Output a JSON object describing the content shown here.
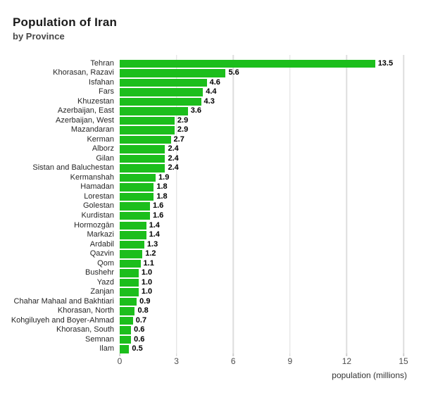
{
  "chart": {
    "title": "Population of Iran",
    "subtitle": "by Province",
    "xaxis_title": "population (millions)"
  },
  "chart_data": {
    "type": "bar",
    "orientation": "horizontal",
    "title": "Population of Iran",
    "subtitle": "by Province",
    "xlabel": "population (millions)",
    "ylabel": "",
    "xlim": [
      0,
      15
    ],
    "xticks": [
      0,
      3,
      6,
      9,
      12,
      15
    ],
    "grid": true,
    "bar_color": "#1cbe1c",
    "grid_color": "#dedede",
    "value_label_decimals": 1,
    "categories": [
      "Tehran",
      "Khorasan, Razavi",
      "Isfahan",
      "Fars",
      "Khuzestan",
      "Azerbaijan, East",
      "Azerbaijan, West",
      "Mazandaran",
      "Kerman",
      "Alborz",
      "Gilan",
      "Sistan and Baluchestan",
      "Kermanshah",
      "Hamadan",
      "Lorestan",
      "Golestan",
      "Kurdistan",
      "Hormozgān",
      "Markazi",
      "Ardabil",
      "Qazvin",
      "Qom",
      "Bushehr",
      "Yazd",
      "Zanjan",
      "Chahar Mahaal and Bakhtiari",
      "Khorasan, North",
      "Kohgiluyeh and Boyer-Ahmad",
      "Khorasan, South",
      "Semnan",
      "Ilam"
    ],
    "values": [
      13.5,
      5.6,
      4.6,
      4.4,
      4.3,
      3.6,
      2.9,
      2.9,
      2.7,
      2.4,
      2.4,
      2.4,
      1.9,
      1.8,
      1.8,
      1.6,
      1.6,
      1.4,
      1.4,
      1.3,
      1.2,
      1.1,
      1.0,
      1.0,
      1.0,
      0.9,
      0.8,
      0.7,
      0.6,
      0.6,
      0.5
    ]
  }
}
